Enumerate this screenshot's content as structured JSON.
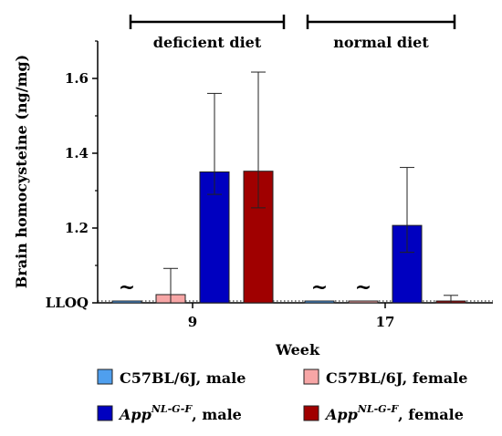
{
  "chart_data": {
    "type": "bar",
    "xlabel": "Week",
    "ylabel": "Brain homocysteine (ng/mg)",
    "categories": [
      "9",
      "17"
    ],
    "ylim": [
      1.0,
      1.7
    ],
    "yticks": [
      {
        "value": 1.0,
        "label": "LLOQ"
      },
      {
        "value": 1.2,
        "label": "1.2"
      },
      {
        "value": 1.4,
        "label": "1.4"
      },
      {
        "value": 1.6,
        "label": "1.6"
      }
    ],
    "lloq_line": 1.0,
    "groups": [
      {
        "label": "deficient diet",
        "category": "9"
      },
      {
        "label": "normal diet",
        "category": "17"
      }
    ],
    "series": [
      {
        "name": "C57BL/6J, male",
        "color": "#4f9fee",
        "values": [
          1.0,
          1.0
        ],
        "err_low": [
          0,
          0
        ],
        "err_high": [
          0,
          0
        ],
        "tilde": [
          true,
          true
        ]
      },
      {
        "name": "C57BL/6J, female",
        "color": "#f7a6a6",
        "values": [
          1.022,
          1.002
        ],
        "err_low": [
          0.022,
          0
        ],
        "err_high": [
          0.07,
          0
        ],
        "tilde": [
          false,
          true
        ]
      },
      {
        "name_base": "App",
        "name_sup": "NL-G-F",
        "name_rest": ", male",
        "color": "#0000c0",
        "values": [
          1.35,
          1.207
        ],
        "err_low": [
          0.06,
          0.072
        ],
        "err_high": [
          0.21,
          0.155
        ],
        "tilde": [
          false,
          false
        ]
      },
      {
        "name_base": "App",
        "name_sup": "NL-G-F",
        "name_rest": ", female",
        "color": "#a00000",
        "values": [
          1.352,
          1.003
        ],
        "err_low": [
          0.098,
          0.003
        ],
        "err_high": [
          0.265,
          0.017
        ],
        "tilde": [
          false,
          false
        ]
      }
    ],
    "tilde_symbol": "~",
    "grid": false,
    "legend_position": "bottom"
  }
}
